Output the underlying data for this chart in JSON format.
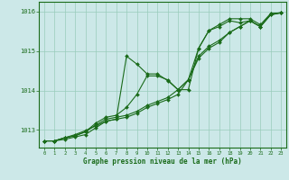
{
  "background_color": "#cce8e8",
  "grid_color": "#99ccbb",
  "line_color": "#1a6b1a",
  "marker_color": "#1a6b1a",
  "xlabel": "Graphe pression niveau de la mer (hPa)",
  "xlim": [
    -0.5,
    23.5
  ],
  "ylim": [
    1012.55,
    1016.25
  ],
  "yticks": [
    1013,
    1014,
    1015,
    1016
  ],
  "xticks": [
    0,
    1,
    2,
    3,
    4,
    5,
    6,
    7,
    8,
    9,
    10,
    11,
    12,
    13,
    14,
    15,
    16,
    17,
    18,
    19,
    20,
    21,
    22,
    23
  ],
  "series": [
    [
      1012.72,
      1012.72,
      1012.76,
      1012.82,
      1012.88,
      1013.05,
      1013.22,
      1013.27,
      1014.87,
      1014.67,
      1014.42,
      1014.42,
      1014.25,
      1014.02,
      1014.02,
      1015.07,
      1015.52,
      1015.67,
      1015.82,
      1015.82,
      1015.82,
      1015.67,
      1015.95,
      1015.97
    ],
    [
      1012.72,
      1012.72,
      1012.8,
      1012.88,
      1012.98,
      1013.1,
      1013.22,
      1013.27,
      1013.32,
      1013.42,
      1013.57,
      1013.67,
      1013.77,
      1013.9,
      1014.27,
      1014.82,
      1015.07,
      1015.22,
      1015.47,
      1015.62,
      1015.77,
      1015.62,
      1015.95,
      1015.97
    ],
    [
      1012.72,
      1012.72,
      1012.8,
      1012.85,
      1012.95,
      1013.12,
      1013.27,
      1013.32,
      1013.37,
      1013.47,
      1013.62,
      1013.72,
      1013.82,
      1014.02,
      1014.27,
      1014.87,
      1015.12,
      1015.27,
      1015.47,
      1015.62,
      1015.77,
      1015.62,
      1015.92,
      1015.97
    ],
    [
      1012.72,
      1012.72,
      1012.8,
      1012.85,
      1012.95,
      1013.17,
      1013.32,
      1013.37,
      1013.57,
      1013.9,
      1014.37,
      1014.37,
      1014.27,
      1014.02,
      1014.27,
      1015.07,
      1015.52,
      1015.62,
      1015.77,
      1015.72,
      1015.77,
      1015.62,
      1015.92,
      1015.97
    ]
  ]
}
